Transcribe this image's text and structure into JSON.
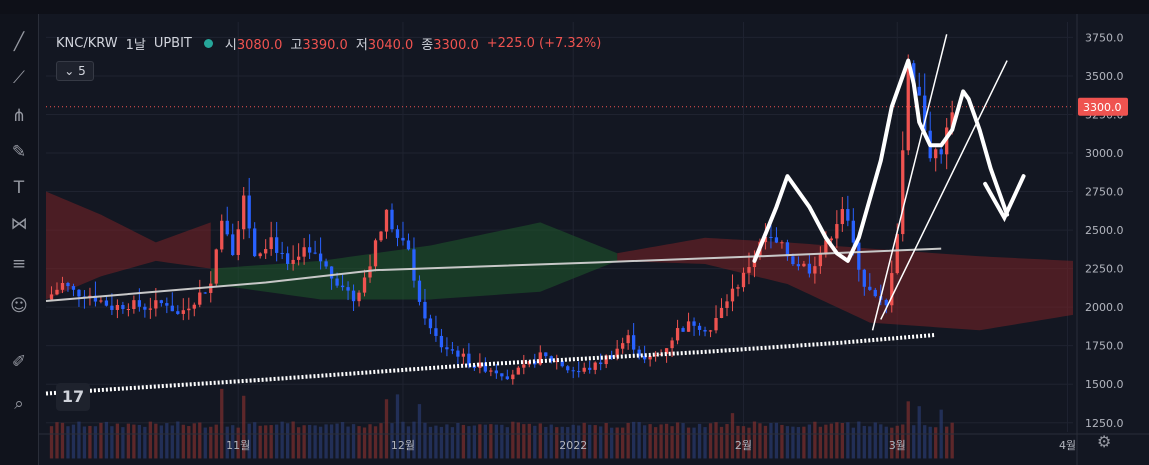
{
  "header": {
    "symbol": "KNC/KRW",
    "interval": "1날",
    "exchange": "UPBIT",
    "open_label": "시",
    "open": "3080.0",
    "high_label": "고",
    "high": "3390.0",
    "low_label": "저",
    "low": "3040.0",
    "close_label": "종",
    "close": "3300.0",
    "change": "+225.0 (+7.32%)"
  },
  "indicator_toggle": "5",
  "toolbar_icons": [
    "line-tool-icon",
    "ruler-icon",
    "fork-icon",
    "brush-icon",
    "text-icon",
    "pattern-icon",
    "lines-icon",
    "emoji-icon",
    "pencil-icon",
    "zoom-icon"
  ],
  "colors": {
    "up": "#ef5350",
    "down": "#2962ff",
    "bg": "#131722",
    "cloud_red": "#7a2326",
    "cloud_green": "#1f5a2c",
    "ma": "#c8c8c8",
    "drawing": "#ffffff"
  },
  "chart_data": {
    "type": "candlestick",
    "title": "KNC/KRW 1날 UPBIT",
    "y_ticks": [
      1250,
      1500,
      1750,
      2000,
      2250,
      2500,
      2750,
      3000,
      3250,
      3500,
      3750
    ],
    "y_tick_labels": [
      "1250.0",
      "1500.0",
      "1750.0",
      "2000.0",
      "2250.0",
      "2500.0",
      "2750.0",
      "3000.0",
      "3250.0",
      "3500.0",
      "3750.0"
    ],
    "ylim": [
      1190,
      3850
    ],
    "last_price": 3300,
    "last_price_label": "3300.0",
    "x_ticks": [
      {
        "label": "11월",
        "day": 35
      },
      {
        "label": "12월",
        "day": 65
      },
      {
        "label": "2022",
        "day": 96
      },
      {
        "label": "2월",
        "day": 127
      },
      {
        "label": "3월",
        "day": 155
      },
      {
        "label": "4월",
        "day": 186
      }
    ],
    "xlim": [
      0,
      187
    ],
    "close_anchors": [
      [
        0,
        2050
      ],
      [
        3,
        2150
      ],
      [
        5,
        2100
      ],
      [
        8,
        2080
      ],
      [
        12,
        2000
      ],
      [
        15,
        2020
      ],
      [
        18,
        2000
      ],
      [
        22,
        2030
      ],
      [
        24,
        1950
      ],
      [
        27,
        2050
      ],
      [
        30,
        2150
      ],
      [
        32,
        2600
      ],
      [
        34,
        2380
      ],
      [
        36,
        2700
      ],
      [
        38,
        2350
      ],
      [
        41,
        2450
      ],
      [
        44,
        2250
      ],
      [
        47,
        2350
      ],
      [
        50,
        2300
      ],
      [
        52,
        2200
      ],
      [
        54,
        2150
      ],
      [
        56,
        2050
      ],
      [
        58,
        2200
      ],
      [
        60,
        2400
      ],
      [
        62,
        2600
      ],
      [
        64,
        2450
      ],
      [
        66,
        2350
      ],
      [
        68,
        2050
      ],
      [
        70,
        1850
      ],
      [
        72,
        1750
      ],
      [
        75,
        1700
      ],
      [
        78,
        1620
      ],
      [
        81,
        1600
      ],
      [
        84,
        1560
      ],
      [
        87,
        1600
      ],
      [
        90,
        1680
      ],
      [
        93,
        1650
      ],
      [
        95,
        1600
      ],
      [
        97,
        1580
      ],
      [
        100,
        1620
      ],
      [
        103,
        1700
      ],
      [
        106,
        1800
      ],
      [
        109,
        1650
      ],
      [
        112,
        1700
      ],
      [
        115,
        1850
      ],
      [
        118,
        1900
      ],
      [
        121,
        1850
      ],
      [
        124,
        2050
      ],
      [
        127,
        2200
      ],
      [
        129,
        2350
      ],
      [
        131,
        2450
      ],
      [
        134,
        2380
      ],
      [
        136,
        2300
      ],
      [
        139,
        2250
      ],
      [
        142,
        2400
      ],
      [
        145,
        2650
      ],
      [
        147,
        2400
      ],
      [
        149,
        2150
      ],
      [
        151,
        2050
      ],
      [
        153,
        2000
      ],
      [
        155,
        2500
      ],
      [
        157,
        3550
      ],
      [
        159,
        3400
      ],
      [
        161,
        2950
      ],
      [
        163,
        3000
      ],
      [
        165,
        3300
      ]
    ],
    "ma_slow": [
      [
        0,
        1440
      ],
      [
        40,
        1530
      ],
      [
        80,
        1630
      ],
      [
        120,
        1710
      ],
      [
        145,
        1770
      ],
      [
        162,
        1820
      ]
    ],
    "ma_fast": [
      [
        0,
        2040
      ],
      [
        40,
        2160
      ],
      [
        60,
        2240
      ],
      [
        100,
        2290
      ],
      [
        130,
        2330
      ],
      [
        163,
        2380
      ]
    ],
    "cloud_red_segments": [
      {
        "from": 0,
        "to": 30,
        "top": [
          [
            0,
            2750
          ],
          [
            10,
            2600
          ],
          [
            20,
            2420
          ],
          [
            30,
            2550
          ]
        ],
        "bottom": [
          [
            0,
            2050
          ],
          [
            10,
            2200
          ],
          [
            20,
            2300
          ],
          [
            30,
            2250
          ]
        ]
      },
      {
        "from": 104,
        "to": 187,
        "top": [
          [
            104,
            2350
          ],
          [
            120,
            2450
          ],
          [
            135,
            2420
          ],
          [
            150,
            2380
          ],
          [
            170,
            2330
          ],
          [
            187,
            2300
          ]
        ],
        "bottom": [
          [
            104,
            2300
          ],
          [
            120,
            2280
          ],
          [
            135,
            2150
          ],
          [
            150,
            1900
          ],
          [
            170,
            1850
          ],
          [
            187,
            1950
          ]
        ]
      }
    ],
    "cloud_green_segments": [
      {
        "from": 30,
        "to": 104,
        "top": [
          [
            30,
            2250
          ],
          [
            50,
            2300
          ],
          [
            70,
            2400
          ],
          [
            90,
            2550
          ],
          [
            104,
            2350
          ]
        ],
        "bottom": [
          [
            30,
            2150
          ],
          [
            50,
            2050
          ],
          [
            70,
            2050
          ],
          [
            90,
            2100
          ],
          [
            104,
            2300
          ]
        ]
      }
    ],
    "volume_base_price": 1200,
    "volume_spikes": [
      [
        32,
        600
      ],
      [
        36,
        500
      ],
      [
        62,
        450
      ],
      [
        64,
        520
      ],
      [
        68,
        380
      ],
      [
        125,
        250
      ],
      [
        157,
        420
      ],
      [
        159,
        350
      ],
      [
        163,
        300
      ]
    ]
  }
}
